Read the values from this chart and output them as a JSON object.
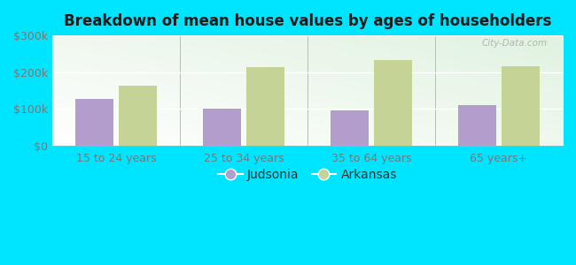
{
  "title": "Breakdown of mean house values by ages of householders",
  "categories": [
    "15 to 24 years",
    "25 to 34 years",
    "35 to 64 years",
    "65 years+"
  ],
  "judsonia_values": [
    128000,
    101000,
    95000,
    110000
  ],
  "arkansas_values": [
    163000,
    213000,
    232000,
    215000
  ],
  "judsonia_color": "#b39dcc",
  "arkansas_color": "#c5d496",
  "background_color": "#00e5ff",
  "ylim": [
    0,
    300000
  ],
  "yticks": [
    0,
    100000,
    200000,
    300000
  ],
  "ytick_labels": [
    "$0",
    "$100k",
    "$200k",
    "$300k"
  ],
  "legend_judsonia": "Judsonia",
  "legend_arkansas": "Arkansas",
  "bar_width": 0.3,
  "title_fontsize": 12,
  "tick_fontsize": 9,
  "legend_fontsize": 10,
  "watermark": "City-Data.com",
  "tick_color": "#777777",
  "grid_color": "#cccccc",
  "divider_color": "#bbbbbb"
}
